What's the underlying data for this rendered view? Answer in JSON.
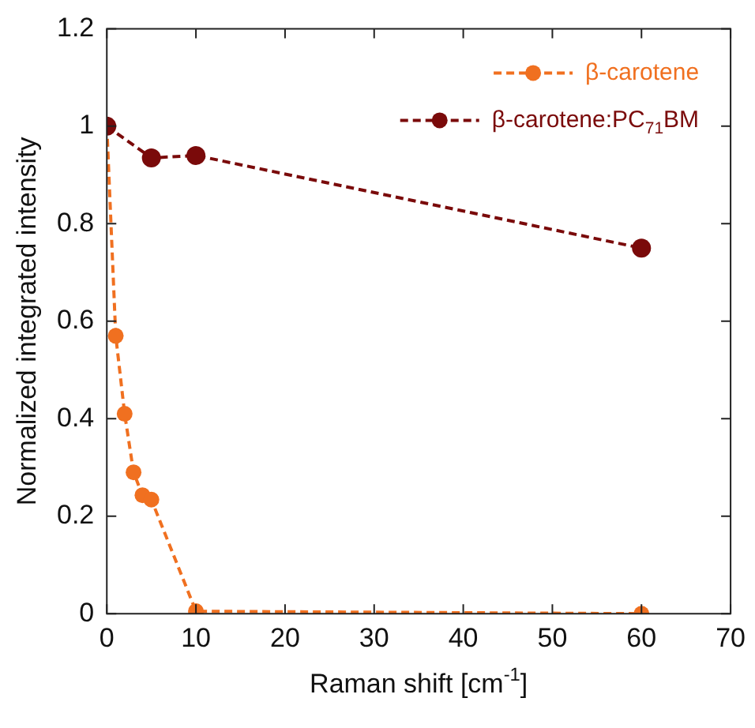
{
  "chart_data": {
    "type": "line",
    "xlabel": "Raman shift [cm$^{-1}$]",
    "ylabel": "Normalized integrated intensity",
    "xlim": [
      0,
      70
    ],
    "xticks": [
      0,
      10,
      20,
      30,
      40,
      50,
      60,
      70
    ],
    "ylim": [
      0,
      1.2
    ],
    "yticks": [
      0,
      {
        "value": 0.2,
        "label": "0.2"
      },
      {
        "value": 0.4,
        "label": "0.4"
      },
      {
        "value": 0.6,
        "label": "0.6"
      },
      {
        "value": 0.8,
        "label": "0.8"
      },
      1,
      {
        "value": 1.2,
        "label": "1.2"
      }
    ],
    "legend": "top right",
    "marker": "circle",
    "line_style": "dashed",
    "series": [
      {
        "name": "β-carotene",
        "color": "#f07020",
        "x": [
          0,
          1,
          2,
          3,
          4,
          5,
          10,
          60
        ],
        "values": [
          1,
          0.57,
          0.41,
          0.29,
          0.243,
          0.234,
          0.005,
          0
        ]
      },
      {
        "name": "β-carotene:PC$_{71}$BM",
        "color": "#7a0a0a",
        "x": [
          0,
          5,
          10,
          60
        ],
        "values": [
          1,
          0.935,
          0.94,
          0.75
        ]
      }
    ]
  }
}
